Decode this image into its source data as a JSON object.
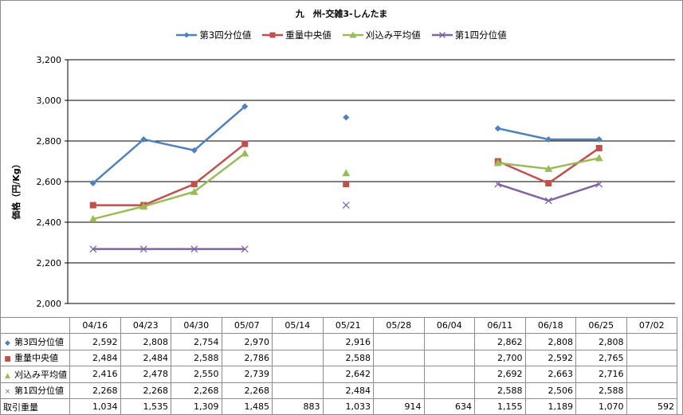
{
  "chart_data": {
    "type": "line",
    "title": "九　州-交雑3-しんたま",
    "ylabel": "価格（円/Kg）",
    "ylim": [
      2000,
      3200
    ],
    "yticks": [
      2000,
      2200,
      2400,
      2600,
      2800,
      3000,
      3200
    ],
    "ytick_labels": [
      "2,000",
      "2,200",
      "2,400",
      "2,600",
      "2,800",
      "3,000",
      "3,200"
    ],
    "grid": true,
    "legend_position": "top",
    "categories": [
      "04/16",
      "04/23",
      "04/30",
      "05/07",
      "05/14",
      "05/21",
      "05/28",
      "06/04",
      "06/11",
      "06/18",
      "06/25",
      "07/02"
    ],
    "series": [
      {
        "name": "第3四分位値",
        "color": "#4f81bd",
        "marker": "diamond",
        "values": [
          2592,
          2808,
          2754,
          2970,
          null,
          2916,
          null,
          null,
          2862,
          2808,
          2808,
          null
        ],
        "labels": [
          "2,592",
          "2,808",
          "2,754",
          "2,970",
          "",
          "2,916",
          "",
          "",
          "2,862",
          "2,808",
          "2,808",
          ""
        ]
      },
      {
        "name": "重量中央値",
        "color": "#c0504d",
        "marker": "square",
        "values": [
          2484,
          2484,
          2588,
          2786,
          null,
          2588,
          null,
          null,
          2700,
          2592,
          2765,
          null
        ],
        "labels": [
          "2,484",
          "2,484",
          "2,588",
          "2,786",
          "",
          "2,588",
          "",
          "",
          "2,700",
          "2,592",
          "2,765",
          ""
        ]
      },
      {
        "name": "刈込み平均値",
        "color": "#9bbb59",
        "marker": "triangle",
        "values": [
          2416,
          2478,
          2550,
          2739,
          null,
          2642,
          null,
          null,
          2692,
          2663,
          2716,
          null
        ],
        "labels": [
          "2,416",
          "2,478",
          "2,550",
          "2,739",
          "",
          "2,642",
          "",
          "",
          "2,692",
          "2,663",
          "2,716",
          ""
        ]
      },
      {
        "name": "第1四分位値",
        "color": "#8064a2",
        "marker": "x",
        "values": [
          2268,
          2268,
          2268,
          2268,
          null,
          2484,
          null,
          null,
          2588,
          2506,
          2588,
          null
        ],
        "labels": [
          "2,268",
          "2,268",
          "2,268",
          "2,268",
          "",
          "2,484",
          "",
          "",
          "2,588",
          "2,506",
          "2,588",
          ""
        ]
      }
    ],
    "table_extra_row": {
      "name": "取引重量",
      "labels": [
        "1,034",
        "1,535",
        "1,309",
        "1,485",
        "883",
        "1,033",
        "914",
        "634",
        "1,155",
        "1,189",
        "1,070",
        "592"
      ]
    }
  }
}
